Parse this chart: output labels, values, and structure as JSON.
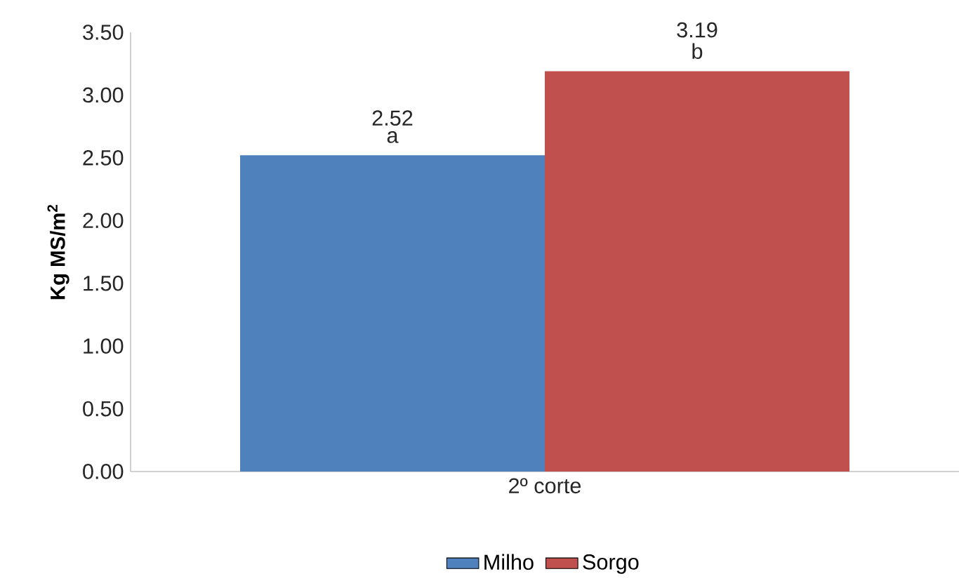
{
  "chart_data": {
    "type": "bar",
    "ylabel": "Kg MS/m$^{2}$",
    "categories": [
      "2º corte"
    ],
    "series": [
      {
        "name": "Milho",
        "color": "#4f81bd",
        "values": [
          2.52
        ],
        "value_labels": [
          "2.52"
        ]
      },
      {
        "name": "Sorgo",
        "color": "#c0504d",
        "values": [
          3.19
        ],
        "value_labels": [
          "3.19"
        ]
      }
    ],
    "annotations": [
      "a",
      "b"
    ],
    "ylim": [
      0,
      3.5
    ],
    "yticks": [
      {
        "value": 0,
        "label": "0.00"
      },
      {
        "value": 0.5,
        "label": "0.50"
      },
      {
        "value": 1,
        "label": "1.00"
      },
      {
        "value": 1.5,
        "label": "1.50"
      },
      {
        "value": 2,
        "label": "2.00"
      },
      {
        "value": 2.5,
        "label": "2.50"
      },
      {
        "value": 3,
        "label": "3.00"
      },
      {
        "value": 3.5,
        "label": "3.50"
      }
    ],
    "grid": false,
    "legend": "bottom"
  }
}
